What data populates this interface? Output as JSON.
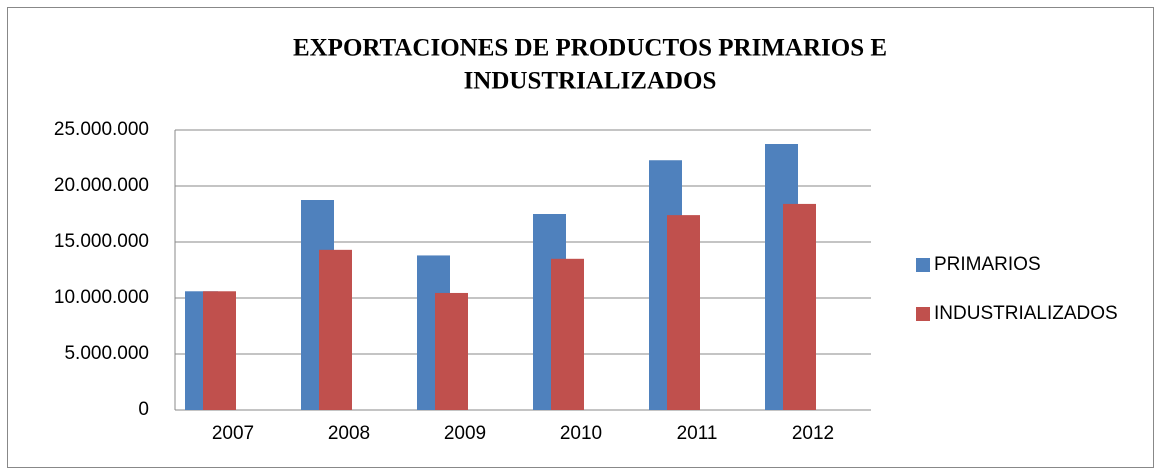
{
  "chart_data": {
    "type": "bar",
    "title": [
      "EXPORTACIONES  DE PRODUCTOS PRIMARIOS E",
      "INDUSTRIALIZADOS"
    ],
    "categories": [
      "2007",
      "2008",
      "2009",
      "2010",
      "2011",
      "2012"
    ],
    "series": [
      {
        "name": "PRIMARIOS",
        "color": "#4f81bd",
        "values": [
          10600000,
          18750000,
          13800000,
          17500000,
          22300000,
          23750000
        ]
      },
      {
        "name": "INDUSTRIALIZADOS",
        "color": "#c0504d",
        "values": [
          10600000,
          14300000,
          10450000,
          13500000,
          17400000,
          18400000
        ]
      }
    ],
    "ylim": [
      0,
      25000000
    ],
    "yticks": [
      0,
      {
        "value": 5000000,
        "label": "5.000.000"
      },
      {
        "value": 10000000,
        "label": "10.000.000"
      },
      {
        "value": 15000000,
        "label": "15.000.000"
      },
      {
        "value": 20000000,
        "label": "20.000.000"
      },
      {
        "value": 25000000,
        "label": "25.000.000"
      }
    ],
    "grid": true,
    "legend": "right"
  }
}
